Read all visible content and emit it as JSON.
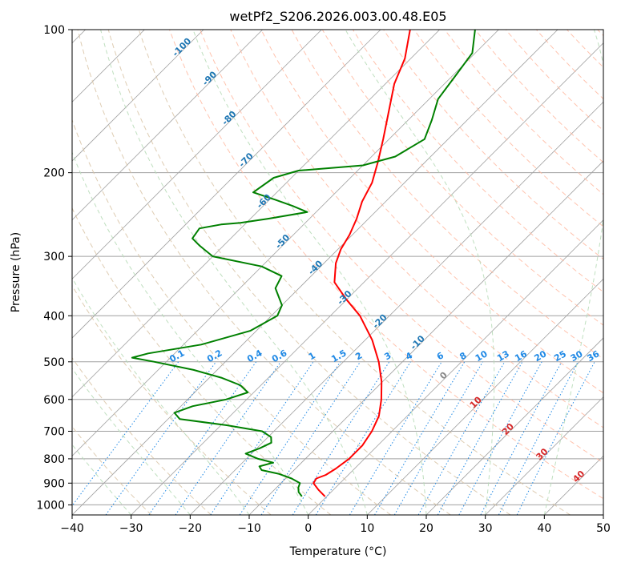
{
  "chart_data": {
    "type": "line",
    "subtype": "skew-T log-P diagram",
    "title": "wetPf2_S206.2026.003.00.48.E05",
    "xlabel": "Temperature (°C)",
    "ylabel": "Pressure (hPa)",
    "xlim": [
      -40,
      50
    ],
    "ylim": [
      1050,
      100
    ],
    "x_ticks": [
      -40,
      -30,
      -20,
      -10,
      0,
      10,
      20,
      30,
      40,
      50
    ],
    "x_tick_labels": [
      "−40",
      "−30",
      "−20",
      "−10",
      "0",
      "10",
      "20",
      "30",
      "40",
      "50"
    ],
    "y_ticks": [
      1000,
      900,
      800,
      700,
      600,
      500,
      400,
      300,
      200,
      100
    ],
    "y_tick_labels": [
      "1000",
      "900",
      "800",
      "700",
      "600",
      "500",
      "400",
      "300",
      "200",
      "100"
    ],
    "grid": true,
    "colors": {
      "temperature": "#ff0000",
      "dewpoint": "#008000",
      "isotherm": "#a0a0a0",
      "dry_adiabat": "#d8c3a5",
      "moist_adiabat": "#b8dbb8",
      "moist_label": "#1f77b4",
      "mixing_ratio": "#1e88e5",
      "zero_line": "#888888",
      "warm_label": "#d62728",
      "salmon": "#ffb8a0"
    },
    "series": [
      {
        "name": "Temperature",
        "color": "#ff0000",
        "points": [
          {
            "p": 960,
            "t": -0.3
          },
          {
            "p": 930,
            "t": -2.5
          },
          {
            "p": 900,
            "t": -4.5
          },
          {
            "p": 880,
            "t": -4.8
          },
          {
            "p": 865,
            "t": -3.8
          },
          {
            "p": 840,
            "t": -3.2
          },
          {
            "p": 800,
            "t": -2.6
          },
          {
            "p": 750,
            "t": -2.6
          },
          {
            "p": 700,
            "t": -3.4
          },
          {
            "p": 650,
            "t": -4.8
          },
          {
            "p": 600,
            "t": -7.2
          },
          {
            "p": 550,
            "t": -10.2
          },
          {
            "p": 500,
            "t": -14.0
          },
          {
            "p": 450,
            "t": -18.8
          },
          {
            "p": 400,
            "t": -25.0
          },
          {
            "p": 370,
            "t": -30.0
          },
          {
            "p": 340,
            "t": -35.0
          },
          {
            "p": 310,
            "t": -38.0
          },
          {
            "p": 290,
            "t": -39.5
          },
          {
            "p": 270,
            "t": -40.5
          },
          {
            "p": 250,
            "t": -42.0
          },
          {
            "p": 230,
            "t": -44.0
          },
          {
            "p": 210,
            "t": -45.5
          },
          {
            "p": 190,
            "t": -48.0
          },
          {
            "p": 170,
            "t": -51.0
          },
          {
            "p": 150,
            "t": -54.5
          },
          {
            "p": 130,
            "t": -58.5
          },
          {
            "p": 115,
            "t": -61.0
          },
          {
            "p": 100,
            "t": -65.0
          }
        ]
      },
      {
        "name": "Dewpoint",
        "color": "#008000",
        "points": [
          {
            "p": 960,
            "t": -4.2
          },
          {
            "p": 940,
            "t": -5.5
          },
          {
            "p": 920,
            "t": -6.3
          },
          {
            "p": 900,
            "t": -6.8
          },
          {
            "p": 880,
            "t": -9.0
          },
          {
            "p": 860,
            "t": -12.0
          },
          {
            "p": 845,
            "t": -15.5
          },
          {
            "p": 830,
            "t": -16.5
          },
          {
            "p": 815,
            "t": -14.8
          },
          {
            "p": 800,
            "t": -18.0
          },
          {
            "p": 780,
            "t": -21.0
          },
          {
            "p": 760,
            "t": -19.5
          },
          {
            "p": 740,
            "t": -18.5
          },
          {
            "p": 720,
            "t": -19.5
          },
          {
            "p": 700,
            "t": -22.0
          },
          {
            "p": 680,
            "t": -29.0
          },
          {
            "p": 660,
            "t": -38.0
          },
          {
            "p": 640,
            "t": -40.0
          },
          {
            "p": 620,
            "t": -38.0
          },
          {
            "p": 600,
            "t": -33.5
          },
          {
            "p": 580,
            "t": -31.0
          },
          {
            "p": 560,
            "t": -33.5
          },
          {
            "p": 540,
            "t": -38.0
          },
          {
            "p": 520,
            "t": -44.0
          },
          {
            "p": 500,
            "t": -52.0
          },
          {
            "p": 490,
            "t": -56.5
          },
          {
            "p": 480,
            "t": -54.5
          },
          {
            "p": 460,
            "t": -47.0
          },
          {
            "p": 430,
            "t": -41.0
          },
          {
            "p": 400,
            "t": -39.0
          },
          {
            "p": 380,
            "t": -40.0
          },
          {
            "p": 350,
            "t": -44.0
          },
          {
            "p": 330,
            "t": -45.0
          },
          {
            "p": 315,
            "t": -50.0
          },
          {
            "p": 300,
            "t": -60.0
          },
          {
            "p": 285,
            "t": -64.0
          },
          {
            "p": 275,
            "t": -66.5
          },
          {
            "p": 262,
            "t": -67.0
          },
          {
            "p": 257,
            "t": -64.0
          },
          {
            "p": 255,
            "t": -61.0
          },
          {
            "p": 250,
            "t": -57.0
          },
          {
            "p": 242,
            "t": -51.5
          },
          {
            "p": 235,
            "t": -55.0
          },
          {
            "p": 228,
            "t": -59.0
          },
          {
            "p": 220,
            "t": -64.0
          },
          {
            "p": 205,
            "t": -63.0
          },
          {
            "p": 198,
            "t": -60.0
          },
          {
            "p": 193,
            "t": -50.0
          },
          {
            "p": 185,
            "t": -46.0
          },
          {
            "p": 170,
            "t": -44.0
          },
          {
            "p": 155,
            "t": -46.0
          },
          {
            "p": 140,
            "t": -48.5
          },
          {
            "p": 125,
            "t": -49.5
          },
          {
            "p": 112,
            "t": -50.5
          },
          {
            "p": 100,
            "t": -54.0
          }
        ]
      }
    ],
    "moist_adiabat_labels": [
      {
        "label": "-100",
        "t": -100,
        "p": 110
      },
      {
        "label": "-90",
        "t": -90,
        "p": 128
      },
      {
        "label": "-80",
        "t": -80,
        "p": 155
      },
      {
        "label": "-70",
        "t": -70,
        "p": 190
      },
      {
        "label": "-60",
        "t": -60,
        "p": 232
      },
      {
        "label": "-50",
        "t": -50,
        "p": 282
      },
      {
        "label": "-40",
        "t": -40,
        "p": 320
      },
      {
        "label": "-30",
        "t": -30,
        "p": 370
      },
      {
        "label": "-20",
        "t": -20,
        "p": 415
      },
      {
        "label": "-10",
        "t": -10,
        "p": 460
      },
      {
        "label": "0",
        "t": 0,
        "p": 540
      },
      {
        "label": "10",
        "t": 10,
        "p": 615
      },
      {
        "label": "20",
        "t": 20,
        "p": 700
      },
      {
        "label": "30",
        "t": 30,
        "p": 790
      },
      {
        "label": "40",
        "t": 40,
        "p": 880
      }
    ],
    "mixing_ratio_labels": [
      "0.1",
      "0.2",
      "0.4",
      "0.6",
      "1",
      "1.5",
      "2",
      "3",
      "4",
      "6",
      "8",
      "10",
      "13",
      "16",
      "20",
      "25",
      "30",
      "36"
    ]
  }
}
